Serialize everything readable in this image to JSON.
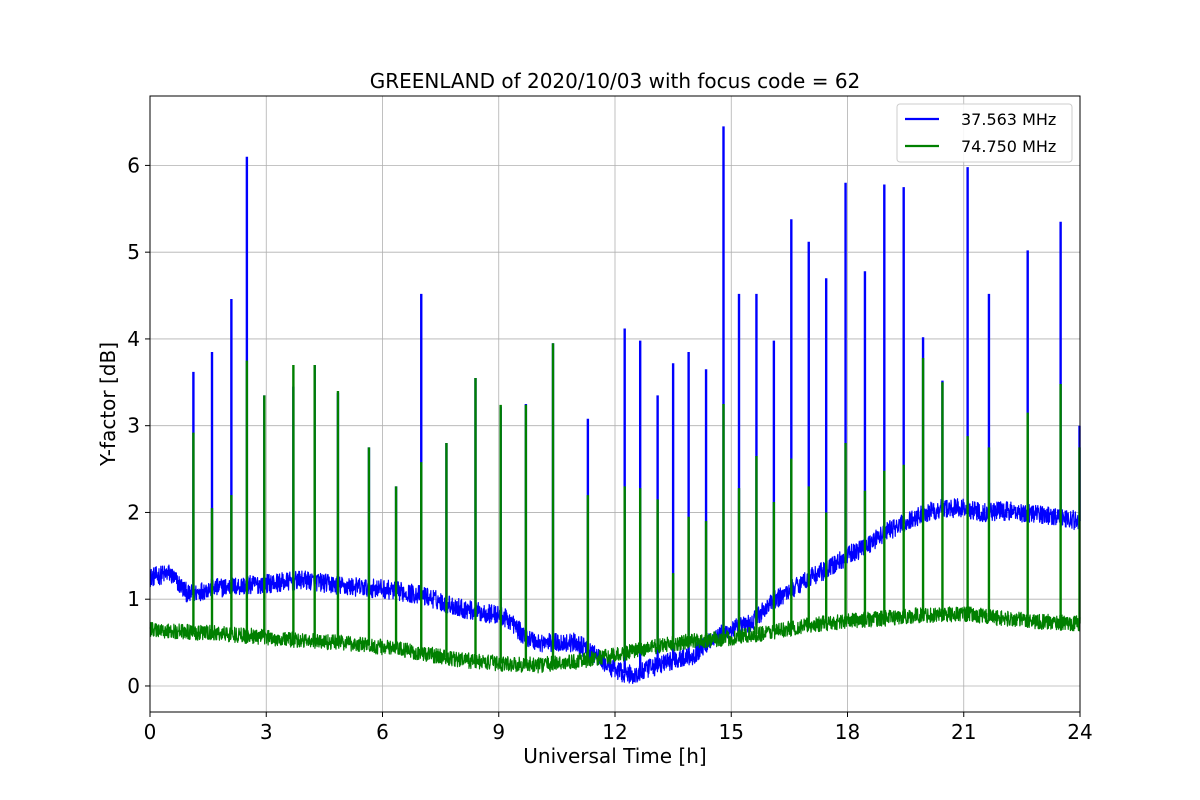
{
  "chart_data": {
    "type": "line",
    "title": "GREENLAND of 2020/10/03 with focus code = 62",
    "xlabel": "Universal Time [h]",
    "ylabel": "Y-factor [dB]",
    "xlim": [
      0,
      24
    ],
    "ylim": [
      -0.3,
      6.8
    ],
    "xticks": [
      0,
      3,
      6,
      9,
      12,
      15,
      18,
      21,
      24
    ],
    "yticks": [
      0,
      1,
      2,
      3,
      4,
      5,
      6
    ],
    "grid": true,
    "legend_position": "top-right",
    "series": [
      {
        "name": "37.563 MHz",
        "color": "#0000ff",
        "baseline": [
          [
            0,
            1.25
          ],
          [
            0.5,
            1.3
          ],
          [
            1.0,
            1.05
          ],
          [
            1.5,
            1.12
          ],
          [
            3,
            1.18
          ],
          [
            4,
            1.22
          ],
          [
            5,
            1.15
          ],
          [
            6,
            1.12
          ],
          [
            7,
            1.05
          ],
          [
            8,
            0.9
          ],
          [
            8.5,
            0.85
          ],
          [
            9,
            0.82
          ],
          [
            9.3,
            0.75
          ],
          [
            9.6,
            0.6
          ],
          [
            10,
            0.5
          ],
          [
            10.5,
            0.5
          ],
          [
            11,
            0.5
          ],
          [
            11.5,
            0.35
          ],
          [
            12,
            0.18
          ],
          [
            12.5,
            0.12
          ],
          [
            13,
            0.22
          ],
          [
            13.5,
            0.3
          ],
          [
            14,
            0.35
          ],
          [
            14.5,
            0.55
          ],
          [
            15,
            0.65
          ],
          [
            15.5,
            0.72
          ],
          [
            16,
            0.95
          ],
          [
            16.5,
            1.1
          ],
          [
            17,
            1.25
          ],
          [
            17.5,
            1.35
          ],
          [
            18,
            1.5
          ],
          [
            18.5,
            1.62
          ],
          [
            19,
            1.78
          ],
          [
            19.5,
            1.88
          ],
          [
            20,
            2.0
          ],
          [
            20.5,
            2.05
          ],
          [
            21,
            2.05
          ],
          [
            21.5,
            2.0
          ],
          [
            22,
            2.02
          ],
          [
            22.5,
            2.0
          ],
          [
            23,
            1.98
          ],
          [
            24,
            1.9
          ]
        ],
        "spikes": [
          [
            1.12,
            3.62
          ],
          [
            1.6,
            3.85
          ],
          [
            2.1,
            4.46
          ],
          [
            2.5,
            6.1
          ],
          [
            2.95,
            3.35
          ],
          [
            3.7,
            3.45
          ],
          [
            4.25,
            3.7
          ],
          [
            4.85,
            3.38
          ],
          [
            5.65,
            2.75
          ],
          [
            6.35,
            2.3
          ],
          [
            7.0,
            4.52
          ],
          [
            7.65,
            2.8
          ],
          [
            8.4,
            3.55
          ],
          [
            9.05,
            3.22
          ],
          [
            9.7,
            3.25
          ],
          [
            10.4,
            3.95
          ],
          [
            11.3,
            3.08
          ],
          [
            12.25,
            4.12
          ],
          [
            12.65,
            3.98
          ],
          [
            13.1,
            3.35
          ],
          [
            13.5,
            3.72
          ],
          [
            13.9,
            3.85
          ],
          [
            14.35,
            3.65
          ],
          [
            14.8,
            6.45
          ],
          [
            15.2,
            4.52
          ],
          [
            15.65,
            4.52
          ],
          [
            16.1,
            3.98
          ],
          [
            16.55,
            5.38
          ],
          [
            17.0,
            5.12
          ],
          [
            17.45,
            4.7
          ],
          [
            17.95,
            5.8
          ],
          [
            18.45,
            4.78
          ],
          [
            18.95,
            5.78
          ],
          [
            19.45,
            5.75
          ],
          [
            19.95,
            4.02
          ],
          [
            20.45,
            3.52
          ],
          [
            21.1,
            5.98
          ],
          [
            21.65,
            4.52
          ],
          [
            22.65,
            5.02
          ],
          [
            23.5,
            5.35
          ],
          [
            24.0,
            3.0
          ]
        ],
        "noise_amplitude": 0.11
      },
      {
        "name": "74.750 MHz",
        "color": "#008000",
        "baseline": [
          [
            0,
            0.65
          ],
          [
            1,
            0.62
          ],
          [
            2,
            0.6
          ],
          [
            3,
            0.56
          ],
          [
            4,
            0.52
          ],
          [
            5,
            0.5
          ],
          [
            6,
            0.45
          ],
          [
            7,
            0.38
          ],
          [
            8,
            0.3
          ],
          [
            9,
            0.26
          ],
          [
            10,
            0.24
          ],
          [
            11,
            0.28
          ],
          [
            12,
            0.35
          ],
          [
            13,
            0.45
          ],
          [
            14,
            0.52
          ],
          [
            15,
            0.55
          ],
          [
            16,
            0.62
          ],
          [
            17,
            0.7
          ],
          [
            18,
            0.75
          ],
          [
            19,
            0.78
          ],
          [
            20,
            0.82
          ],
          [
            21,
            0.83
          ],
          [
            22,
            0.78
          ],
          [
            23,
            0.74
          ],
          [
            24,
            0.72
          ]
        ],
        "spikes": [
          [
            1.12,
            2.92
          ],
          [
            1.6,
            2.05
          ],
          [
            2.1,
            2.2
          ],
          [
            2.5,
            3.75
          ],
          [
            2.95,
            3.35
          ],
          [
            3.7,
            3.7
          ],
          [
            4.25,
            3.7
          ],
          [
            4.85,
            3.4
          ],
          [
            5.65,
            2.75
          ],
          [
            6.35,
            2.3
          ],
          [
            7.0,
            2.58
          ],
          [
            7.65,
            2.8
          ],
          [
            8.4,
            3.55
          ],
          [
            9.05,
            3.24
          ],
          [
            9.7,
            3.24
          ],
          [
            10.4,
            3.95
          ],
          [
            11.3,
            2.2
          ],
          [
            12.25,
            2.3
          ],
          [
            12.65,
            2.28
          ],
          [
            13.1,
            2.15
          ],
          [
            13.5,
            1.3
          ],
          [
            13.9,
            1.95
          ],
          [
            14.35,
            1.9
          ],
          [
            14.8,
            3.25
          ],
          [
            15.2,
            2.28
          ],
          [
            15.65,
            2.65
          ],
          [
            16.1,
            2.12
          ],
          [
            16.55,
            2.62
          ],
          [
            17.0,
            2.3
          ],
          [
            17.45,
            2.0
          ],
          [
            17.95,
            2.8
          ],
          [
            18.45,
            2.25
          ],
          [
            18.95,
            2.48
          ],
          [
            19.45,
            2.55
          ],
          [
            19.95,
            3.78
          ],
          [
            20.45,
            3.5
          ],
          [
            21.1,
            2.88
          ],
          [
            21.65,
            2.75
          ],
          [
            22.65,
            3.15
          ],
          [
            23.5,
            3.48
          ],
          [
            24.0,
            2.75
          ]
        ],
        "noise_amplitude": 0.09
      }
    ]
  }
}
